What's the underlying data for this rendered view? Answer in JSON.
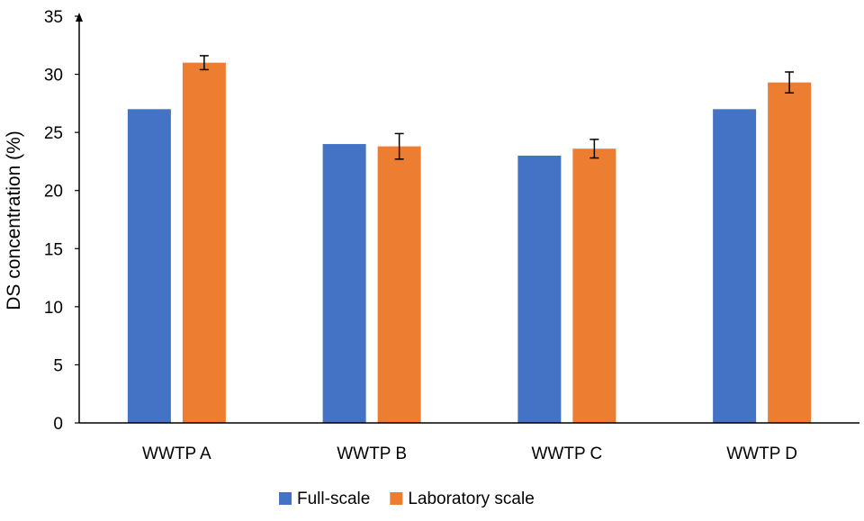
{
  "chart_data": {
    "type": "bar",
    "title": "",
    "xlabel": "",
    "ylabel": "DS concentration (%)",
    "ylim": [
      0,
      35
    ],
    "yticks": [
      0,
      5,
      10,
      15,
      20,
      25,
      30,
      35
    ],
    "grid": false,
    "legend_position": "bottom",
    "categories": [
      "WWTP A",
      "WWTP B",
      "WWTP C",
      "WWTP D"
    ],
    "series": [
      {
        "name": "Full-scale",
        "color": "#4472C4",
        "values": [
          27,
          24,
          23,
          27
        ]
      },
      {
        "name": "Laboratory scale",
        "color": "#ED7D31",
        "values": [
          31,
          23.8,
          23.6,
          29.3
        ],
        "error": [
          0.6,
          1.1,
          0.8,
          0.9
        ]
      }
    ]
  }
}
